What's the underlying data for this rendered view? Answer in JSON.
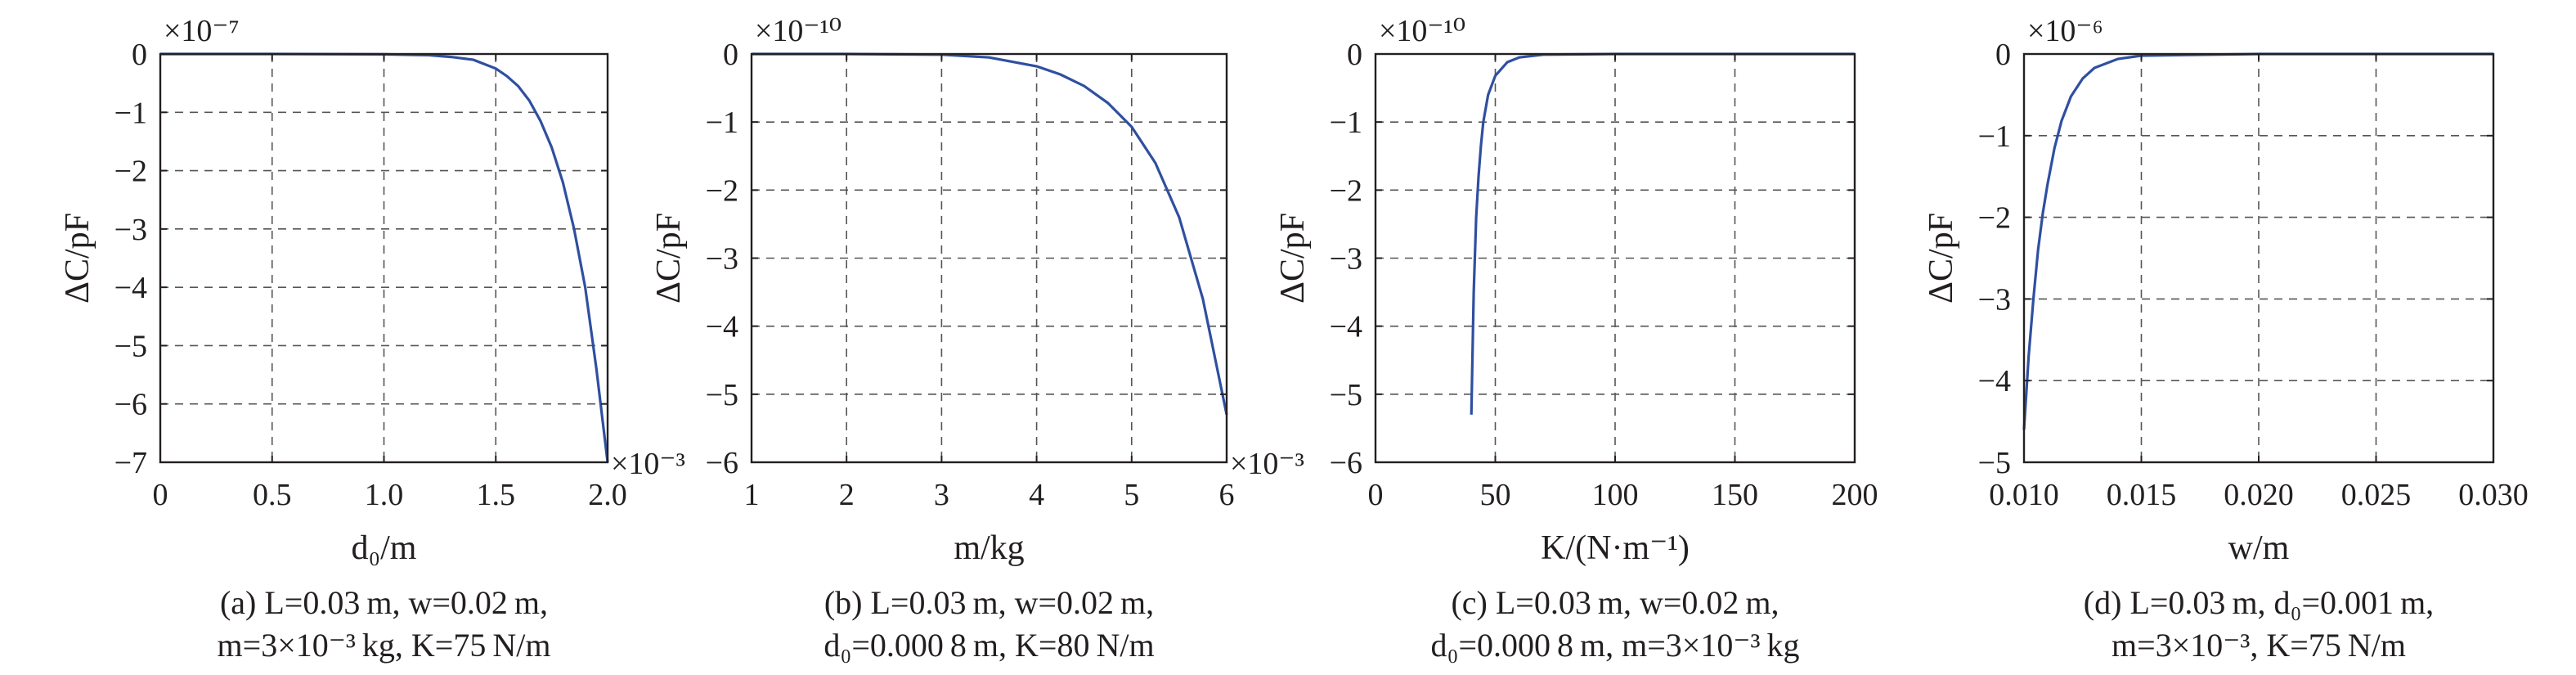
{
  "chart_data": [
    {
      "type": "line",
      "xlabel": "d₀/m",
      "ylabel": "ΔC/pF",
      "xlim": [
        0,
        2.0
      ],
      "ylim": [
        -7,
        0
      ],
      "xticks": [
        0,
        0.5,
        1.0,
        1.5,
        2.0
      ],
      "xtick_labels": [
        "0",
        "0.5",
        "1.0",
        "1.5",
        "2.0"
      ],
      "yticks": [
        0,
        -1,
        -2,
        -3,
        -4,
        -5,
        -6,
        -7
      ],
      "ytick_labels": [
        "0",
        "−1",
        "−2",
        "−3",
        "−4",
        "−5",
        "−6",
        "−7"
      ],
      "x_multiplier": "×10⁻³",
      "y_multiplier": "×10⁻⁷",
      "grid": true,
      "series": [
        {
          "x": [
            0,
            0.5,
            1.0,
            1.2,
            1.3,
            1.4,
            1.5,
            1.55,
            1.6,
            1.65,
            1.7,
            1.75,
            1.8,
            1.85,
            1.9,
            1.95,
            2.0
          ],
          "y": [
            0,
            0,
            -0.005,
            -0.02,
            -0.05,
            -0.1,
            -0.25,
            -0.38,
            -0.55,
            -0.8,
            -1.15,
            -1.6,
            -2.2,
            -3.0,
            -4.0,
            -5.4,
            -7.0
          ]
        }
      ],
      "caption_lines": [
        "(a) L=0.03 m, w=0.02 m,",
        "m=3×10⁻³ kg, K=75 N/m"
      ]
    },
    {
      "type": "line",
      "xlabel": "m/kg",
      "ylabel": "ΔC/pF",
      "xlim": [
        1,
        6
      ],
      "ylim": [
        -6,
        0
      ],
      "xticks": [
        1,
        2,
        3,
        4,
        5,
        6
      ],
      "xtick_labels": [
        "1",
        "2",
        "3",
        "4",
        "5",
        "6"
      ],
      "yticks": [
        0,
        -1,
        -2,
        -3,
        -4,
        -5,
        -6
      ],
      "ytick_labels": [
        "0",
        "−1",
        "−2",
        "−3",
        "−4",
        "−5",
        "−6"
      ],
      "x_multiplier": "×10⁻³",
      "y_multiplier": "×10⁻¹⁰",
      "grid": true,
      "series": [
        {
          "x": [
            1,
            2,
            3,
            3.5,
            4,
            4.25,
            4.5,
            4.75,
            5,
            5.25,
            5.5,
            5.75,
            6.0
          ],
          "y": [
            0,
            0,
            -0.01,
            -0.05,
            -0.18,
            -0.3,
            -0.47,
            -0.72,
            -1.07,
            -1.6,
            -2.4,
            -3.6,
            -5.3
          ]
        }
      ],
      "caption_lines": [
        "(b) L=0.03 m, w=0.02 m,",
        "d₀=0.000 8 m, K=80 N/m"
      ]
    },
    {
      "type": "line",
      "xlabel": "K/(N·m⁻¹)",
      "ylabel": "ΔC/pF",
      "xlim": [
        0,
        200
      ],
      "ylim": [
        -6,
        0
      ],
      "xticks": [
        0,
        50,
        100,
        150,
        200
      ],
      "xtick_labels": [
        "0",
        "50",
        "100",
        "150",
        "200"
      ],
      "yticks": [
        0,
        -1,
        -2,
        -3,
        -4,
        -5,
        -6
      ],
      "ytick_labels": [
        "0",
        "−1",
        "−2",
        "−3",
        "−4",
        "−5",
        "−6"
      ],
      "y_multiplier": "×10⁻¹⁰",
      "grid": true,
      "series": [
        {
          "x": [
            40,
            41,
            42,
            43,
            44,
            45,
            47,
            50,
            55,
            60,
            70,
            100,
            150,
            200
          ],
          "y": [
            -5.3,
            -3.5,
            -2.4,
            -1.8,
            -1.35,
            -1.0,
            -0.6,
            -0.32,
            -0.12,
            -0.05,
            -0.01,
            0,
            0,
            0
          ]
        }
      ],
      "caption_lines": [
        "(c) L=0.03 m, w=0.02 m,",
        "d₀=0.000 8 m, m=3×10⁻³ kg"
      ]
    },
    {
      "type": "line",
      "xlabel": "w/m",
      "ylabel": "ΔC/pF",
      "xlim": [
        0.01,
        0.03
      ],
      "ylim": [
        -5,
        0
      ],
      "xticks": [
        0.01,
        0.015,
        0.02,
        0.025,
        0.03
      ],
      "xtick_labels": [
        "0.010",
        "0.015",
        "0.020",
        "0.025",
        "0.030"
      ],
      "yticks": [
        0,
        -1,
        -2,
        -3,
        -4,
        -5
      ],
      "ytick_labels": [
        "0",
        "−1",
        "−2",
        "−3",
        "−4",
        "−5"
      ],
      "y_multiplier": "×10⁻⁶",
      "grid": true,
      "series": [
        {
          "x": [
            0.01,
            0.0102,
            0.0104,
            0.0106,
            0.0108,
            0.011,
            0.0113,
            0.0116,
            0.012,
            0.0125,
            0.013,
            0.014,
            0.015,
            0.02,
            0.03
          ],
          "y": [
            -4.6,
            -3.7,
            -3.0,
            -2.4,
            -1.95,
            -1.6,
            -1.15,
            -0.82,
            -0.52,
            -0.3,
            -0.17,
            -0.06,
            -0.02,
            0,
            0
          ]
        }
      ],
      "caption_lines": [
        "(d) L=0.03 m, d₀=0.001 m,",
        "m=3×10⁻³, K=75 N/m"
      ]
    }
  ]
}
